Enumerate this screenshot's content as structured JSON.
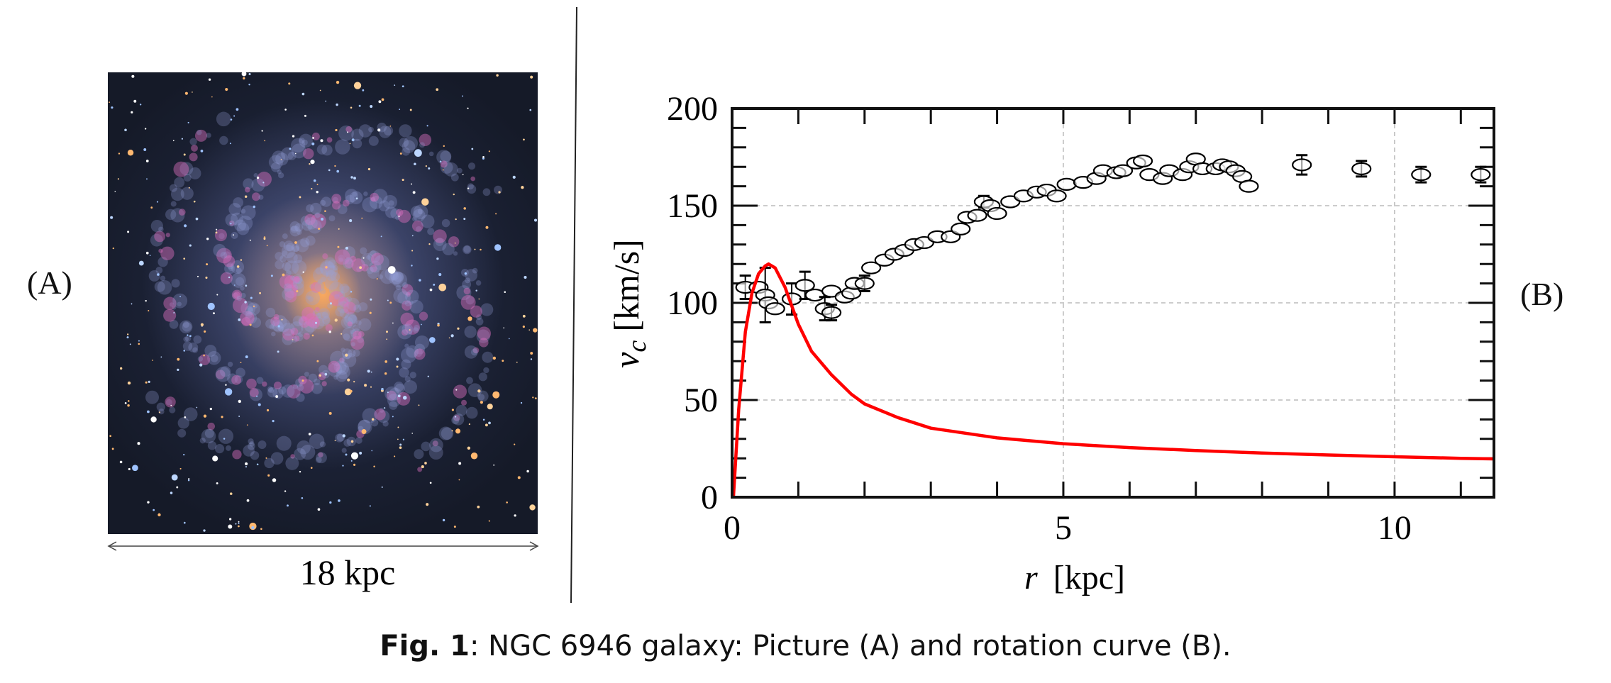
{
  "panels": {
    "a_label": "(A)",
    "b_label": "(B)"
  },
  "picture": {
    "scale_label": "18 kpc",
    "subject": "NGC 6946 galaxy"
  },
  "caption": {
    "prefix": "Fig. 1",
    "text": ": NGC 6946 galaxy: Picture (A) and rotation curve (B)."
  },
  "chart_data": {
    "type": "scatter",
    "title": "",
    "xlabel_var": "r",
    "xlabel_unit": "[kpc]",
    "ylabel_var": "v",
    "ylabel_sub": "c",
    "ylabel_unit": "[km/s]",
    "xlim": [
      0,
      11.5
    ],
    "ylim": [
      0,
      200
    ],
    "xticks": [
      "0",
      "5",
      "10"
    ],
    "yticks": [
      "0",
      "50",
      "100",
      "150",
      "200"
    ],
    "grid": true,
    "series": [
      {
        "kind": "points-open-circles",
        "color": "#000000",
        "x": [
          0.2,
          0.4,
          0.5,
          0.55,
          0.65,
          0.9,
          1.1,
          1.25,
          1.4,
          1.5,
          1.5,
          1.7,
          1.8,
          1.85,
          2.0,
          2.1,
          2.3,
          2.45,
          2.6,
          2.75,
          2.9,
          3.1,
          3.3,
          3.45,
          3.55,
          3.7,
          3.8,
          3.9,
          4.0,
          4.2,
          4.4,
          4.6,
          4.75,
          4.9,
          5.05,
          5.3,
          5.5,
          5.6,
          5.8,
          5.9,
          6.1,
          6.2,
          6.3,
          6.5,
          6.6,
          6.8,
          6.9,
          7.0,
          7.1,
          7.3,
          7.4,
          7.5,
          7.6,
          7.7,
          7.8,
          8.6,
          9.5,
          10.4,
          11.3
        ],
        "y": [
          108,
          108,
          104,
          100,
          97,
          102,
          109,
          104,
          97,
          95,
          106,
          103,
          105,
          110,
          110,
          118,
          122,
          125,
          127,
          130,
          131,
          134,
          134,
          138,
          144,
          145,
          152,
          150,
          146,
          152,
          155,
          157,
          158,
          155,
          161,
          162,
          164,
          168,
          167,
          168,
          172,
          173,
          166,
          164,
          168,
          166,
          170,
          174,
          169,
          169,
          171,
          170,
          168,
          165,
          160,
          171,
          169,
          166,
          166
        ],
        "err": [
          6,
          0,
          14,
          0,
          0,
          8,
          7,
          0,
          6,
          4,
          0,
          0,
          0,
          0,
          4,
          0,
          0,
          0,
          0,
          0,
          0,
          0,
          0,
          0,
          0,
          0,
          3,
          0,
          0,
          0,
          0,
          0,
          0,
          0,
          0,
          0,
          0,
          0,
          0,
          0,
          0,
          0,
          0,
          0,
          0,
          0,
          0,
          0,
          0,
          0,
          0,
          0,
          0,
          0,
          0,
          5,
          4,
          4,
          4
        ]
      },
      {
        "kind": "line",
        "color": "#ff0000",
        "x": [
          0.02,
          0.1,
          0.2,
          0.3,
          0.4,
          0.5,
          0.55,
          0.65,
          0.8,
          1.0,
          1.2,
          1.5,
          1.8,
          2.0,
          2.5,
          3.0,
          4.0,
          5.0,
          6.0,
          7.0,
          8.0,
          9.0,
          10.0,
          11.0,
          11.5
        ],
        "y": [
          0,
          45,
          85,
          105,
          115,
          119,
          120,
          118,
          108,
          89,
          75,
          63,
          53,
          48,
          41,
          35.5,
          30.5,
          27.5,
          25.5,
          24,
          22.7,
          21.7,
          20.8,
          20,
          19.7
        ]
      }
    ]
  }
}
